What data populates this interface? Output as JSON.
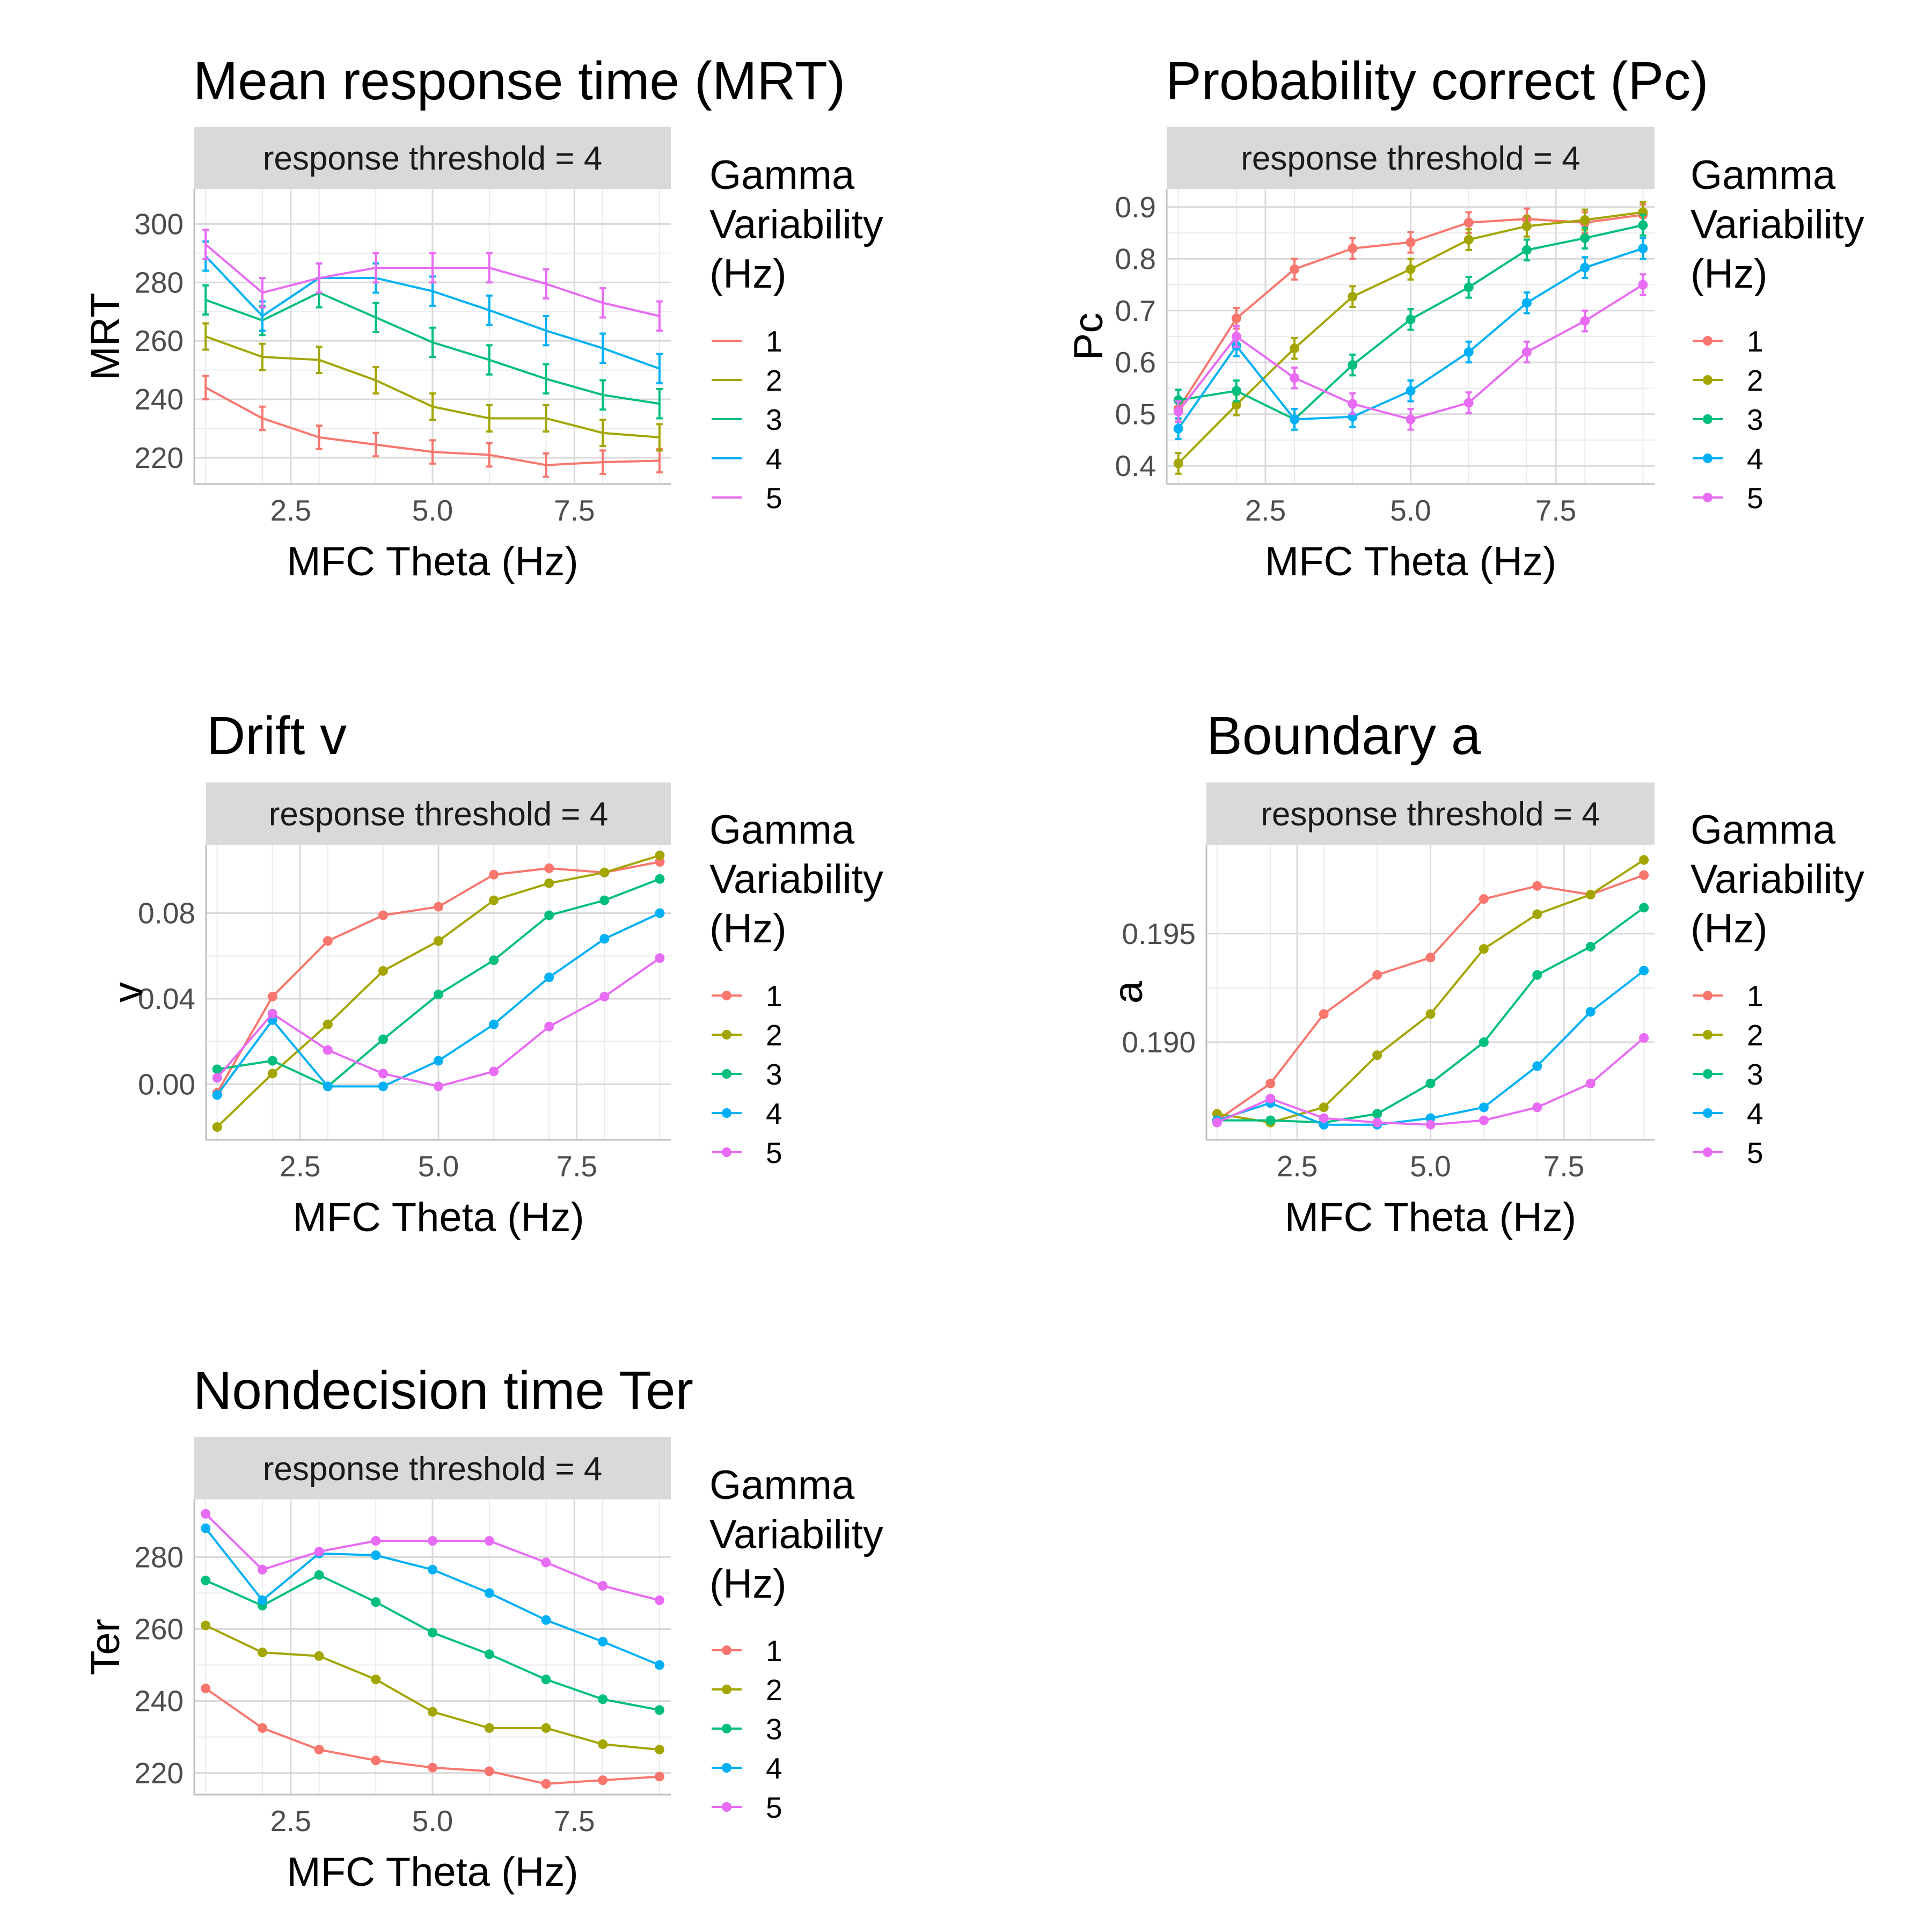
{
  "legend": {
    "title_lines": [
      "Gamma",
      "Variability",
      "(Hz)"
    ],
    "entries": [
      "1",
      "2",
      "3",
      "4",
      "5"
    ],
    "colors": [
      "#F8766D",
      "#A3A500",
      "#00BF7D",
      "#00B0F6",
      "#E76BF3"
    ]
  },
  "chart_data": [
    {
      "type": "line",
      "title": "Mean response time (MRT)",
      "strip": "response threshold = 4",
      "xlabel": "MFC Theta (Hz)",
      "ylabel": "MRT",
      "x": [
        1,
        2,
        3,
        4,
        5,
        6,
        7,
        8,
        9
      ],
      "xlim": [
        0.8,
        9.2
      ],
      "ylim": [
        211,
        312
      ],
      "xticks": [
        2.5,
        5.0,
        7.5
      ],
      "xtick_labels": [
        "2.5",
        "5.0",
        "7.5"
      ],
      "yticks": [
        220,
        240,
        260,
        280,
        300
      ],
      "ytick_labels": [
        "220",
        "240",
        "260",
        "280",
        "300"
      ],
      "markers": false,
      "error_bars": true,
      "series": [
        {
          "name": "1",
          "values": [
            244,
            233.5,
            227,
            224.5,
            222,
            221,
            217.5,
            218.5,
            219
          ],
          "err": [
            4,
            4,
            4,
            4,
            4,
            4,
            4,
            4,
            4
          ]
        },
        {
          "name": "2",
          "values": [
            261.5,
            254.5,
            253.5,
            246.5,
            237.5,
            233.5,
            233.5,
            228.5,
            227
          ],
          "err": [
            4.5,
            4.5,
            4.5,
            4.5,
            4.5,
            4.5,
            4.5,
            4.5,
            4.5
          ]
        },
        {
          "name": "3",
          "values": [
            274,
            267,
            276.5,
            268,
            259.5,
            253.5,
            247,
            241.5,
            238.5
          ],
          "err": [
            5,
            5,
            5,
            5,
            5,
            5,
            5,
            5,
            5
          ]
        },
        {
          "name": "4",
          "values": [
            289,
            268.5,
            281.5,
            281.5,
            277,
            270.5,
            263.5,
            257.5,
            250.5
          ],
          "err": [
            5,
            5,
            5,
            5,
            5,
            5,
            5,
            5,
            5
          ]
        },
        {
          "name": "5",
          "values": [
            293,
            276.5,
            281.5,
            285,
            285,
            285,
            279.5,
            273,
            268.5
          ],
          "err": [
            5,
            5,
            5,
            5,
            5,
            5,
            5,
            5,
            5
          ]
        }
      ]
    },
    {
      "type": "line",
      "title": "Probability correct (Pc)",
      "strip": "response threshold = 4",
      "xlabel": "MFC Theta (Hz)",
      "ylabel": "Pc",
      "x": [
        1,
        2,
        3,
        4,
        5,
        6,
        7,
        8,
        9
      ],
      "xlim": [
        0.8,
        9.2
      ],
      "ylim": [
        0.365,
        0.935
      ],
      "xticks": [
        2.5,
        5.0,
        7.5
      ],
      "xtick_labels": [
        "2.5",
        "5.0",
        "7.5"
      ],
      "yticks": [
        0.4,
        0.5,
        0.6,
        0.7,
        0.8,
        0.9
      ],
      "ytick_labels": [
        "0.4",
        "0.5",
        "0.6",
        "0.7",
        "0.8",
        "0.9"
      ],
      "markers": true,
      "error_bars": true,
      "series": [
        {
          "name": "1",
          "values": [
            0.51,
            0.685,
            0.78,
            0.82,
            0.832,
            0.87,
            0.877,
            0.87,
            0.885
          ],
          "err": [
            0.02,
            0.02,
            0.02,
            0.02,
            0.02,
            0.02,
            0.02,
            0.02,
            0.02
          ]
        },
        {
          "name": "2",
          "values": [
            0.405,
            0.518,
            0.627,
            0.727,
            0.78,
            0.837,
            0.863,
            0.875,
            0.89
          ],
          "err": [
            0.02,
            0.02,
            0.02,
            0.02,
            0.02,
            0.02,
            0.02,
            0.02,
            0.02
          ]
        },
        {
          "name": "3",
          "values": [
            0.527,
            0.545,
            0.49,
            0.595,
            0.683,
            0.745,
            0.817,
            0.84,
            0.865
          ],
          "err": [
            0.02,
            0.02,
            0.02,
            0.02,
            0.02,
            0.02,
            0.02,
            0.02,
            0.02
          ]
        },
        {
          "name": "4",
          "values": [
            0.472,
            0.632,
            0.49,
            0.495,
            0.545,
            0.62,
            0.715,
            0.783,
            0.82
          ],
          "err": [
            0.02,
            0.02,
            0.02,
            0.02,
            0.02,
            0.02,
            0.02,
            0.02,
            0.02
          ]
        },
        {
          "name": "5",
          "values": [
            0.505,
            0.65,
            0.57,
            0.52,
            0.49,
            0.522,
            0.62,
            0.68,
            0.75
          ],
          "err": [
            0.02,
            0.02,
            0.02,
            0.02,
            0.02,
            0.02,
            0.02,
            0.02,
            0.02
          ]
        }
      ]
    },
    {
      "type": "line",
      "title": "Drift v",
      "strip": "response threshold = 4",
      "xlabel": "MFC Theta (Hz)",
      "ylabel": "v",
      "x": [
        1,
        2,
        3,
        4,
        5,
        6,
        7,
        8,
        9
      ],
      "xlim": [
        0.8,
        9.2
      ],
      "ylim": [
        -0.026,
        0.112
      ],
      "xticks": [
        2.5,
        5.0,
        7.5
      ],
      "xtick_labels": [
        "2.5",
        "5.0",
        "7.5"
      ],
      "yticks": [
        0.0,
        0.04,
        0.08
      ],
      "ytick_labels": [
        "0.00",
        "0.04",
        "0.08"
      ],
      "markers": true,
      "error_bars": false,
      "series": [
        {
          "name": "1",
          "values": [
            -0.004,
            0.041,
            0.067,
            0.079,
            0.083,
            0.098,
            0.101,
            0.099,
            0.104
          ]
        },
        {
          "name": "2",
          "values": [
            -0.02,
            0.005,
            0.028,
            0.053,
            0.067,
            0.086,
            0.094,
            0.099,
            0.107
          ]
        },
        {
          "name": "3",
          "values": [
            0.007,
            0.011,
            -0.001,
            0.021,
            0.042,
            0.058,
            0.079,
            0.086,
            0.096
          ]
        },
        {
          "name": "4",
          "values": [
            -0.005,
            0.03,
            -0.001,
            -0.001,
            0.011,
            0.028,
            0.05,
            0.068,
            0.08
          ]
        },
        {
          "name": "5",
          "values": [
            0.003,
            0.033,
            0.016,
            0.005,
            -0.001,
            0.006,
            0.027,
            0.041,
            0.059
          ]
        }
      ]
    },
    {
      "type": "line",
      "title": "Boundary a",
      "strip": "response threshold = 4",
      "xlabel": "MFC Theta (Hz)",
      "ylabel": "a",
      "x": [
        1,
        2,
        3,
        4,
        5,
        6,
        7,
        8,
        9
      ],
      "xlim": [
        0.8,
        9.2
      ],
      "ylim": [
        0.1855,
        0.1991
      ],
      "xticks": [
        2.5,
        5.0,
        7.5
      ],
      "xtick_labels": [
        "2.5",
        "5.0",
        "7.5"
      ],
      "yticks": [
        0.19,
        0.195
      ],
      "ytick_labels": [
        "0.190",
        "0.195"
      ],
      "markers": true,
      "error_bars": false,
      "series": [
        {
          "name": "1",
          "values": [
            0.1864,
            0.1881,
            0.1913,
            0.1931,
            0.1939,
            0.1966,
            0.1972,
            0.1968,
            0.1977
          ]
        },
        {
          "name": "2",
          "values": [
            0.1867,
            0.1863,
            0.187,
            0.1894,
            0.1913,
            0.1943,
            0.1959,
            0.1968,
            0.1984
          ]
        },
        {
          "name": "3",
          "values": [
            0.1864,
            0.1864,
            0.1863,
            0.1867,
            0.1881,
            0.19,
            0.1931,
            0.1944,
            0.1962
          ]
        },
        {
          "name": "4",
          "values": [
            0.1864,
            0.1872,
            0.1862,
            0.1862,
            0.1865,
            0.187,
            0.1889,
            0.1914,
            0.1933
          ]
        },
        {
          "name": "5",
          "values": [
            0.1863,
            0.1874,
            0.1865,
            0.1863,
            0.1862,
            0.1864,
            0.187,
            0.1881,
            0.1902
          ]
        }
      ]
    },
    {
      "type": "line",
      "title": "Nondecision time Ter",
      "strip": "response threshold = 4",
      "xlabel": "MFC Theta (Hz)",
      "ylabel": "Ter",
      "x": [
        1,
        2,
        3,
        4,
        5,
        6,
        7,
        8,
        9
      ],
      "xlim": [
        0.8,
        9.2
      ],
      "ylim": [
        214,
        296
      ],
      "xticks": [
        2.5,
        5.0,
        7.5
      ],
      "xtick_labels": [
        "2.5",
        "5.0",
        "7.5"
      ],
      "yticks": [
        220,
        240,
        260,
        280
      ],
      "ytick_labels": [
        "220",
        "240",
        "260",
        "280"
      ],
      "markers": true,
      "error_bars": false,
      "series": [
        {
          "name": "1",
          "values": [
            243.5,
            232.5,
            226.5,
            223.5,
            221.5,
            220.5,
            217,
            218,
            219
          ]
        },
        {
          "name": "2",
          "values": [
            261,
            253.5,
            252.5,
            246,
            237,
            232.5,
            232.5,
            228,
            226.5
          ]
        },
        {
          "name": "3",
          "values": [
            273.5,
            266.5,
            275,
            267.5,
            259,
            253,
            246,
            240.5,
            237.5
          ]
        },
        {
          "name": "4",
          "values": [
            288,
            268,
            281,
            280.5,
            276.5,
            270,
            262.5,
            256.5,
            250
          ]
        },
        {
          "name": "5",
          "values": [
            292,
            276.5,
            281.5,
            284.5,
            284.5,
            284.5,
            278.5,
            272,
            268
          ]
        }
      ]
    }
  ]
}
